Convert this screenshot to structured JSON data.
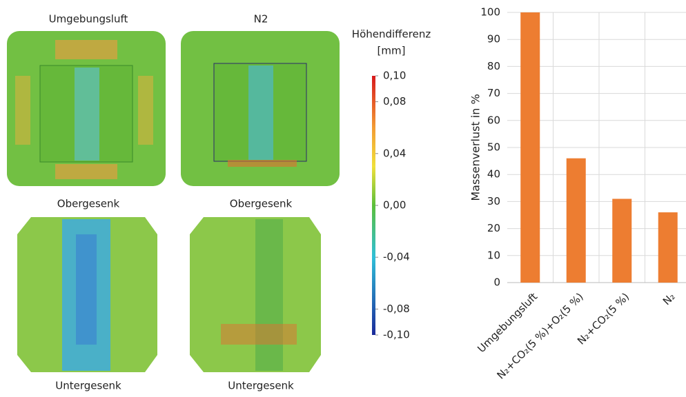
{
  "figure": {
    "column_titles": [
      "Umgebungsluft",
      "N2"
    ],
    "panel_labels": [
      "Obergesenk",
      "Obergesenk",
      "Untergesenk",
      "Untergesenk"
    ]
  },
  "colorbar": {
    "title": "Höhendifferenz",
    "unit": "[mm]",
    "lim": [
      -0.1,
      0.1
    ],
    "ticks": [
      {
        "value": 0.1,
        "label": "0,10"
      },
      {
        "value": 0.08,
        "label": "0,08"
      },
      {
        "value": 0.04,
        "label": "0,04"
      },
      {
        "value": 0,
        "label": "0,00"
      },
      {
        "value": -0.04,
        "label": "-0,04"
      },
      {
        "value": -0.08,
        "label": "-0,08"
      },
      {
        "value": -0.1,
        "label": "-0,10"
      }
    ]
  },
  "chart_data": {
    "type": "bar",
    "ylabel": "Massenverlust in %",
    "categories": [
      "Umgebungsluft",
      "N₂+CO₂(5 %)+O₂(5 %)",
      "N₂+CO₂(5 %)",
      "N₂"
    ],
    "values": [
      100,
      46,
      31,
      26
    ],
    "color": "#ed7d31",
    "ylim": [
      0,
      100
    ],
    "yticks": [
      0,
      10,
      20,
      30,
      40,
      50,
      60,
      70,
      80,
      90,
      100
    ],
    "grid": true
  }
}
